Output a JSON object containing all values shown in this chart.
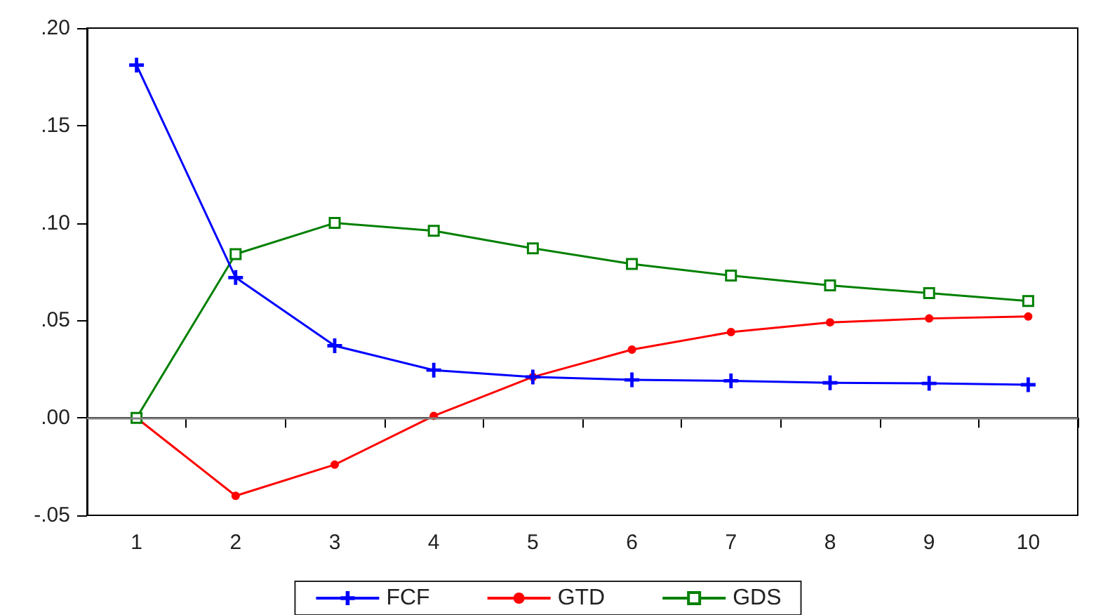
{
  "chart_data": {
    "type": "line",
    "categories": [
      "1",
      "2",
      "3",
      "4",
      "5",
      "6",
      "7",
      "8",
      "9",
      "10"
    ],
    "series": [
      {
        "name": "FCF",
        "color": "#0000ff",
        "marker": "cross",
        "values": [
          0.181,
          0.072,
          0.037,
          0.0245,
          0.021,
          0.0195,
          0.019,
          0.018,
          0.0177,
          0.017
        ]
      },
      {
        "name": "GTD",
        "color": "#ff0000",
        "marker": "circle",
        "values": [
          0,
          -0.04,
          -0.024,
          0.001,
          0.021,
          0.035,
          0.044,
          0.049,
          0.051,
          0.052
        ]
      },
      {
        "name": "GDS",
        "color": "#008000",
        "marker": "square",
        "values": [
          0,
          0.084,
          0.1,
          0.096,
          0.087,
          0.079,
          0.073,
          0.068,
          0.064,
          0.06
        ]
      }
    ],
    "ylim": [
      -0.05,
      0.2
    ],
    "yticks": [
      {
        "value": -0.05,
        "label": "-.05"
      },
      {
        "value": 0,
        "label": ".00"
      },
      {
        "value": 0.05,
        "label": ".05"
      },
      {
        "value": 0.1,
        "label": ".10"
      },
      {
        "value": 0.15,
        "label": ".15"
      },
      {
        "value": 0.2,
        "label": ".20"
      }
    ],
    "ref_lines": [
      {
        "axis": "y",
        "value": 0,
        "color": "#808080"
      }
    ],
    "grid": false,
    "legend": "bottom",
    "line_style": "solid"
  }
}
